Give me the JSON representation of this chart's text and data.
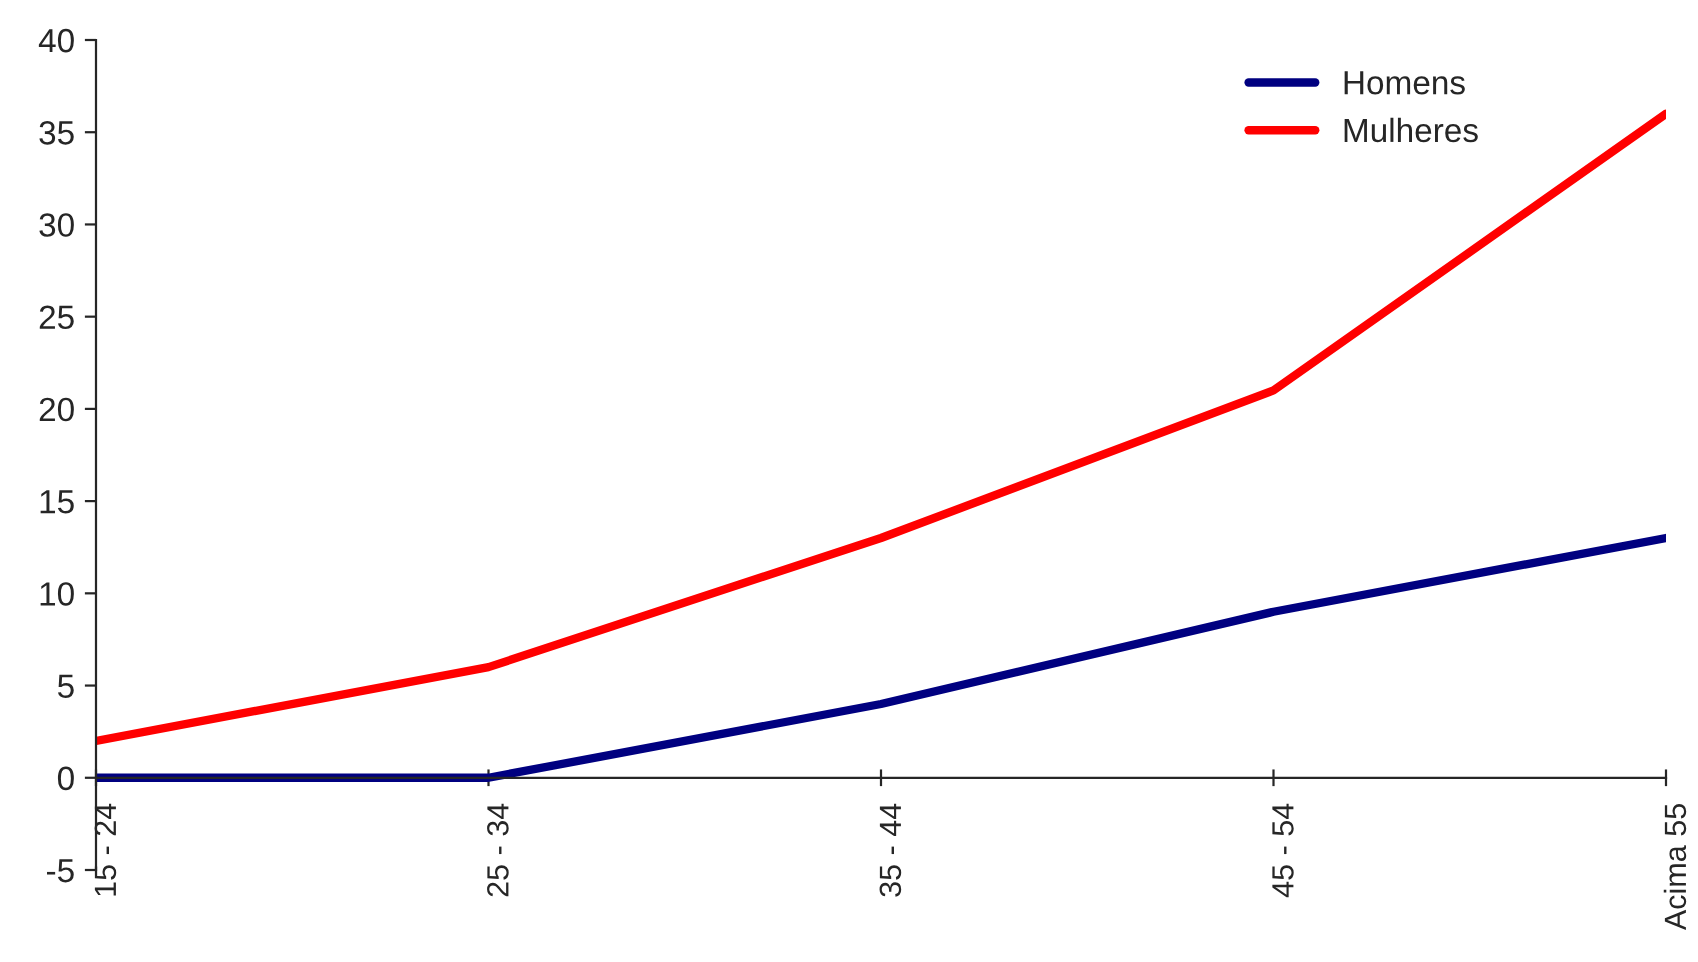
{
  "chart_data": {
    "type": "line",
    "categories": [
      "15 - 24",
      "25 - 34",
      "35 - 44",
      "45 - 54",
      "Acima 55"
    ],
    "series": [
      {
        "name": "Homens",
        "color": "#000080",
        "values": [
          0,
          0,
          4,
          9,
          13
        ]
      },
      {
        "name": "Mulheres",
        "color": "#ff0000",
        "values": [
          2,
          6,
          13,
          21,
          36
        ]
      }
    ],
    "ylim": [
      -5,
      40
    ],
    "yticks": [
      -5,
      0,
      5,
      10,
      15,
      20,
      25,
      30,
      35,
      40
    ],
    "grid": false,
    "legend": "top right",
    "marker": "none",
    "line_style": "solid"
  }
}
